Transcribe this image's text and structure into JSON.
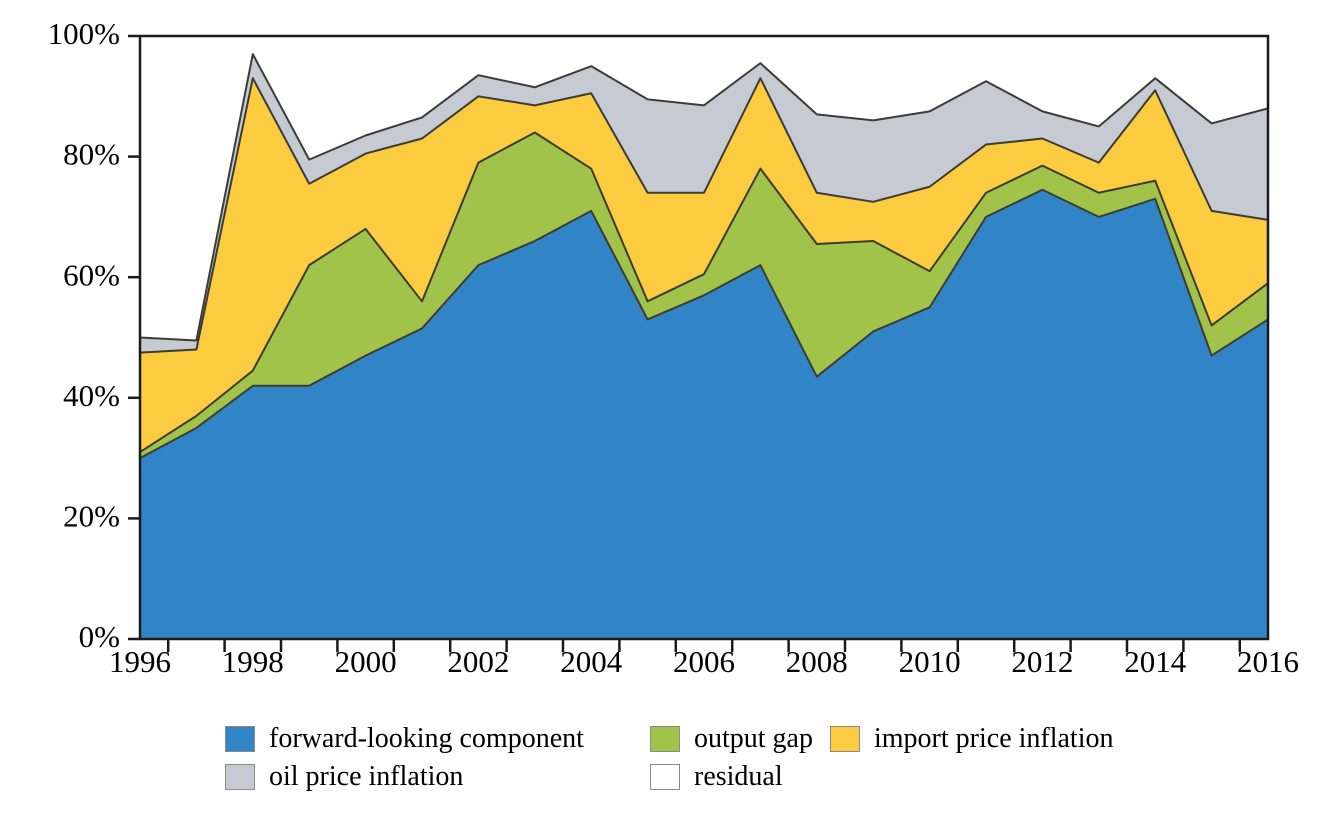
{
  "chart_data": {
    "type": "area",
    "stacked": true,
    "title": "",
    "xlabel": "",
    "ylabel": "",
    "x": [
      1996,
      1997,
      1998,
      1999,
      2000,
      2001,
      2002,
      2003,
      2004,
      2005,
      2006,
      2007,
      2008,
      2009,
      2010,
      2011,
      2012,
      2013,
      2014,
      2015,
      2016
    ],
    "series": [
      {
        "name": "forward-looking component",
        "color": "#3185C6",
        "values": [
          30,
          35,
          42,
          42,
          47,
          51.5,
          62,
          66,
          71,
          53,
          57,
          62,
          43.5,
          51,
          55,
          70,
          74.5,
          70,
          73,
          47,
          53
        ]
      },
      {
        "name": "output gap",
        "color": "#A2C34A",
        "values": [
          1,
          2,
          2.5,
          20,
          21,
          4.5,
          17,
          18,
          7,
          3,
          3.5,
          16,
          22,
          15,
          6,
          4,
          4,
          4,
          3,
          5,
          6
        ]
      },
      {
        "name": "import price inflation",
        "color": "#FBCB40",
        "values": [
          16.5,
          11,
          48.5,
          13.5,
          12.5,
          27,
          11,
          4.5,
          12.5,
          18,
          13.5,
          15,
          8.5,
          6.5,
          14,
          8,
          4.5,
          5,
          15,
          19,
          10.5
        ]
      },
      {
        "name": "oil price inflation",
        "color": "#C6CAD2",
        "values": [
          2.5,
          1.5,
          4,
          4,
          3,
          3.5,
          3.5,
          3,
          4.5,
          15.5,
          14.5,
          2.5,
          13,
          13.5,
          12.5,
          10.5,
          4.5,
          6,
          2,
          14.5,
          18.5
        ]
      },
      {
        "name": "residual",
        "color": "#FFFFFF",
        "values": [
          50,
          50.5,
          3,
          20.5,
          16.5,
          13.5,
          6.5,
          8.5,
          5,
          10.5,
          11.5,
          4.5,
          13,
          14,
          12.5,
          7.5,
          12.5,
          15,
          7,
          14.5,
          12
        ]
      }
    ],
    "ylim": [
      0,
      100
    ],
    "x_axis": {
      "labels": [
        "1996",
        "1998",
        "2000",
        "2002",
        "2004",
        "2006",
        "2008",
        "2010",
        "2012",
        "2014",
        "2016"
      ],
      "range": [
        1996,
        2016
      ]
    },
    "y_axis": {
      "labels": [
        "0%",
        "20%",
        "40%",
        "60%",
        "80%",
        "100%"
      ],
      "values": [
        0,
        20,
        40,
        60,
        80,
        100
      ]
    },
    "outline_color": "#3C3C34",
    "axis_color": "#1a1a1a",
    "grid": false,
    "legend_position": "bottom"
  },
  "legend": {
    "note": "legend entries mirror chart_data.series names"
  }
}
